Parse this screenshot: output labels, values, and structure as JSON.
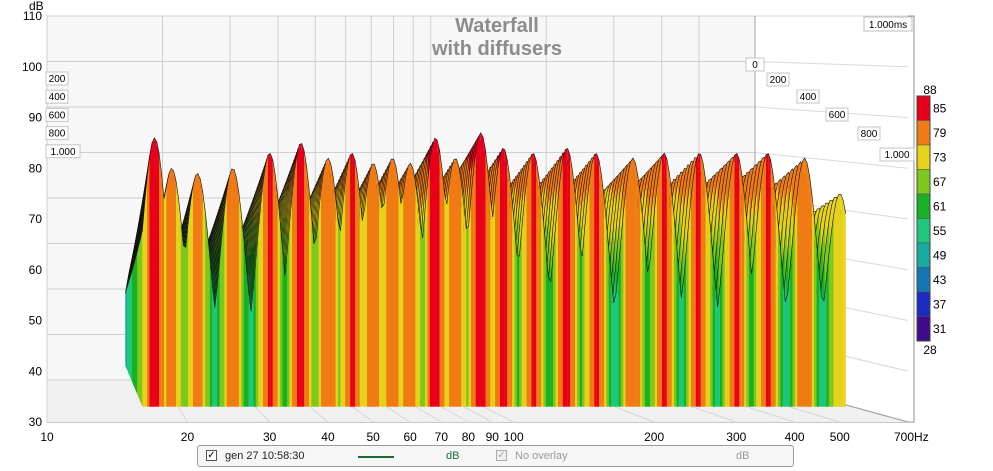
{
  "chart_data": {
    "type": "area",
    "title": "Waterfall",
    "subtitle": "with diffusers",
    "ylabel": "dB",
    "xunit": "Hz",
    "time_label": "1.000ms",
    "ylim": [
      30,
      110
    ],
    "y_ticks": [
      "30",
      "40",
      "50",
      "60",
      "70",
      "80",
      "90",
      "100",
      "110"
    ],
    "xlim": [
      10,
      700
    ],
    "x_scale": "log",
    "x_ticks": [
      {
        "v": 10,
        "t": "10"
      },
      {
        "v": 20,
        "t": "20"
      },
      {
        "v": 30,
        "t": "30"
      },
      {
        "v": 40,
        "t": "40"
      },
      {
        "v": 50,
        "t": "50"
      },
      {
        "v": 60,
        "t": "60"
      },
      {
        "v": 70,
        "t": "70"
      },
      {
        "v": 80,
        "t": "80"
      },
      {
        "v": 90,
        "t": "90"
      },
      {
        "v": 100,
        "t": "100"
      },
      {
        "v": 200,
        "t": "200"
      },
      {
        "v": 300,
        "t": "300"
      },
      {
        "v": 400,
        "t": "400"
      },
      {
        "v": 500,
        "t": "500"
      },
      {
        "v": 700,
        "t": "700Hz"
      }
    ],
    "time_ticks_left": [
      "200",
      "400",
      "600",
      "800",
      "1.000"
    ],
    "time_ticks_right": [
      "0",
      "200",
      "400",
      "600",
      "800",
      "1.000"
    ],
    "color_scale": {
      "top_label": "88",
      "bottom_label": "28",
      "levels": [
        {
          "label": "85",
          "color": "#e8001a"
        },
        {
          "label": "79",
          "color": "#f07a14"
        },
        {
          "label": "73",
          "color": "#e6d21a"
        },
        {
          "label": "67",
          "color": "#7cc81e"
        },
        {
          "label": "61",
          "color": "#18b024"
        },
        {
          "label": "55",
          "color": "#1ec87a"
        },
        {
          "label": "49",
          "color": "#16aaa0"
        },
        {
          "label": "43",
          "color": "#1276b4"
        },
        {
          "label": "37",
          "color": "#1a2cc0"
        },
        {
          "label": "31",
          "color": "#400a8c"
        }
      ]
    },
    "peaks": [
      {
        "x": 17,
        "y": 86
      },
      {
        "x": 18.5,
        "y": 80
      },
      {
        "x": 21,
        "y": 79
      },
      {
        "x": 25,
        "y": 80
      },
      {
        "x": 30,
        "y": 83
      },
      {
        "x": 35,
        "y": 85
      },
      {
        "x": 40,
        "y": 82
      },
      {
        "x": 45,
        "y": 83
      },
      {
        "x": 50,
        "y": 81
      },
      {
        "x": 55,
        "y": 82
      },
      {
        "x": 60,
        "y": 81
      },
      {
        "x": 68,
        "y": 86
      },
      {
        "x": 75,
        "y": 82
      },
      {
        "x": 85,
        "y": 87
      },
      {
        "x": 95,
        "y": 84
      },
      {
        "x": 110,
        "y": 83
      },
      {
        "x": 130,
        "y": 84
      },
      {
        "x": 150,
        "y": 83
      },
      {
        "x": 180,
        "y": 82
      },
      {
        "x": 210,
        "y": 83
      },
      {
        "x": 250,
        "y": 83
      },
      {
        "x": 300,
        "y": 83
      },
      {
        "x": 350,
        "y": 83
      },
      {
        "x": 420,
        "y": 82
      },
      {
        "x": 500,
        "y": 75
      }
    ]
  },
  "legend": {
    "entry1_label": "gen 27 10:58:30",
    "entry1_unit": "dB",
    "entry1_color": "#1a6b3a",
    "entry2_label": "No overlay",
    "entry2_unit": "dB"
  }
}
